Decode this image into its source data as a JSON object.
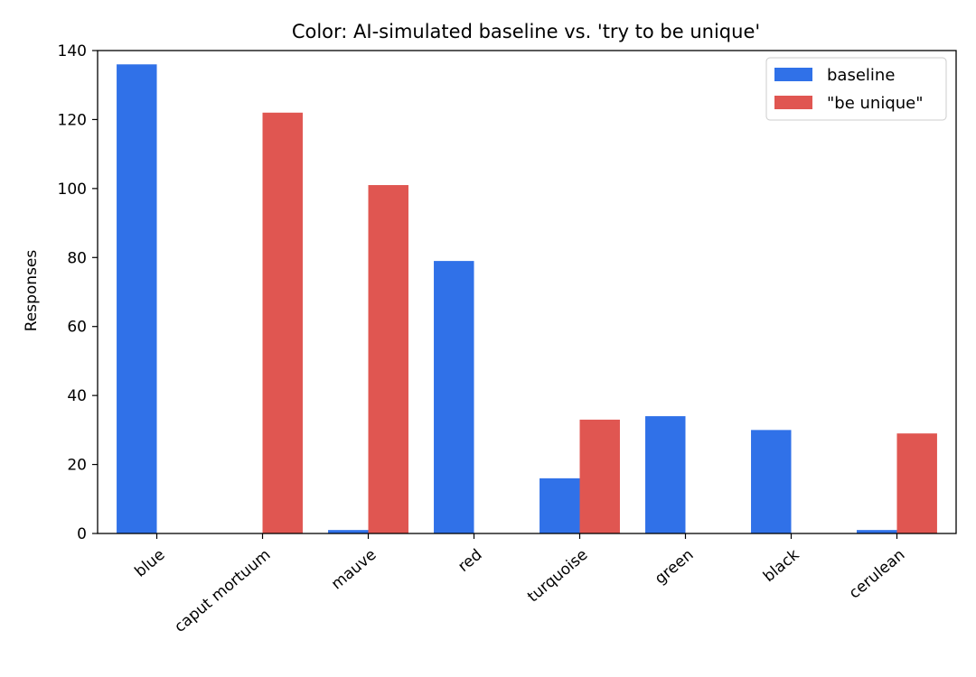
{
  "chart_data": {
    "type": "bar",
    "title": "Color: AI-simulated baseline vs. 'try to be unique'",
    "xlabel": "",
    "ylabel": "Responses",
    "categories": [
      "blue",
      "caput mortuum",
      "mauve",
      "red",
      "turquoise",
      "green",
      "black",
      "cerulean"
    ],
    "series": [
      {
        "name": "baseline",
        "color": "#3071e8",
        "values": [
          136,
          0,
          1,
          79,
          16,
          34,
          30,
          1
        ]
      },
      {
        "name": "\"be unique\"",
        "color": "#e05651",
        "values": [
          0,
          122,
          101,
          0,
          33,
          0,
          0,
          29
        ]
      }
    ],
    "ylim": [
      0,
      140
    ],
    "yticks": [
      0,
      20,
      40,
      60,
      80,
      100,
      120,
      140
    ],
    "grid": false,
    "legend_position": "top-right"
  }
}
